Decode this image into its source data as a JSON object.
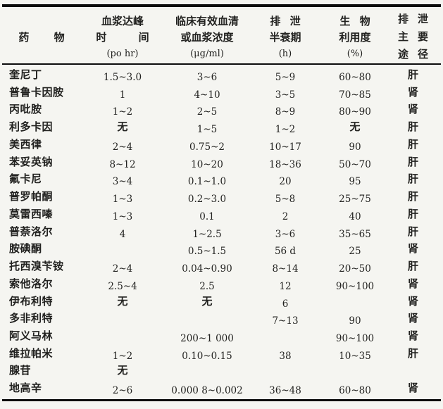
{
  "colors": {
    "paper": "#f5f5f1",
    "ink": "#222220",
    "rule": "#0d0d0d"
  },
  "table": {
    "headers": {
      "drug": {
        "title": "药 物"
      },
      "peak": {
        "line1": "血浆达峰",
        "line2": "时 间",
        "unit": "(po hr)"
      },
      "conc": {
        "line1": "临床有效血清",
        "line2": "或血浆浓度",
        "unit": "(μg/ml)"
      },
      "half": {
        "line1": "排 泄",
        "line2": "半衰期",
        "unit": "(h)"
      },
      "bio": {
        "line1": "生 物",
        "line2": "利用度",
        "unit": "(%)"
      },
      "route": {
        "col1": "排\n主\n途",
        "col2": "泄\n要\n径"
      }
    },
    "rows": [
      {
        "name": "奎尼丁",
        "peak": "1.5~3.0",
        "conc": "3~6",
        "half": "5~9",
        "bio": "60~80",
        "route": "肝"
      },
      {
        "name": "普鲁卡因胺",
        "peak": "1",
        "conc": "4~10",
        "half": "3~5",
        "bio": "70~85",
        "route": "肾"
      },
      {
        "name": "丙吡胺",
        "peak": "1~2",
        "conc": "2~5",
        "half": "8~9",
        "bio": "80~90",
        "route": "肾"
      },
      {
        "name": "利多卡因",
        "peak": "无",
        "conc": "1~5",
        "half": "1~2",
        "bio": "无",
        "route": "肝"
      },
      {
        "name": "美西律",
        "peak": "2~4",
        "conc": "0.75~2",
        "half": "10~17",
        "bio": "90",
        "route": "肝"
      },
      {
        "name": "苯妥英钠",
        "peak": "8~12",
        "conc": "10~20",
        "half": "18~36",
        "bio": "50~70",
        "route": "肝"
      },
      {
        "name": "氟卡尼",
        "peak": "3~4",
        "conc": "0.1~1.0",
        "half": "20",
        "bio": "95",
        "route": "肝"
      },
      {
        "name": "普罗帕酮",
        "peak": "1~3",
        "conc": "0.2~3.0",
        "half": "5~8",
        "bio": "25~75",
        "route": "肝"
      },
      {
        "name": "莫雷西嗪",
        "peak": "1~3",
        "conc": "0.1",
        "half": "2",
        "bio": "40",
        "route": "肝"
      },
      {
        "name": "普萘洛尔",
        "peak": "4",
        "conc": "1~2.5",
        "half": "3~6",
        "bio": "35~65",
        "route": "肝"
      },
      {
        "name": "胺碘酮",
        "peak": "",
        "conc": "0.5~1.5",
        "half": "56 d",
        "bio": "25",
        "route": "肾"
      },
      {
        "name": "托西溴苄铵",
        "peak": "2~4",
        "conc": "0.04~0.90",
        "half": "8~14",
        "bio": "20~50",
        "route": "肝"
      },
      {
        "name": "索他洛尔",
        "peak": "2.5~4",
        "conc": "2.5",
        "half": "12",
        "bio": "90~100",
        "route": "肾"
      },
      {
        "name": "伊布利特",
        "peak": "无",
        "conc": "无",
        "half": "6",
        "bio": "",
        "route": "肾"
      },
      {
        "name": "多非利特",
        "peak": "",
        "conc": "",
        "half": "7~13",
        "bio": "90",
        "route": "肾"
      },
      {
        "name": "阿义马林",
        "peak": "",
        "conc": "200~1 000",
        "half": "",
        "bio": "90~100",
        "route": "肾"
      },
      {
        "name": "维拉帕米",
        "peak": "1~2",
        "conc": "0.10~0.15",
        "half": "38",
        "bio": "10~35",
        "route": "肝"
      },
      {
        "name": "腺苷",
        "peak": "无",
        "conc": "",
        "half": "",
        "bio": "",
        "route": ""
      },
      {
        "name": "地高辛",
        "peak": "2~6",
        "conc": "0.000 8~0.002",
        "half": "36~48",
        "bio": "60~80",
        "route": "肾"
      }
    ]
  }
}
